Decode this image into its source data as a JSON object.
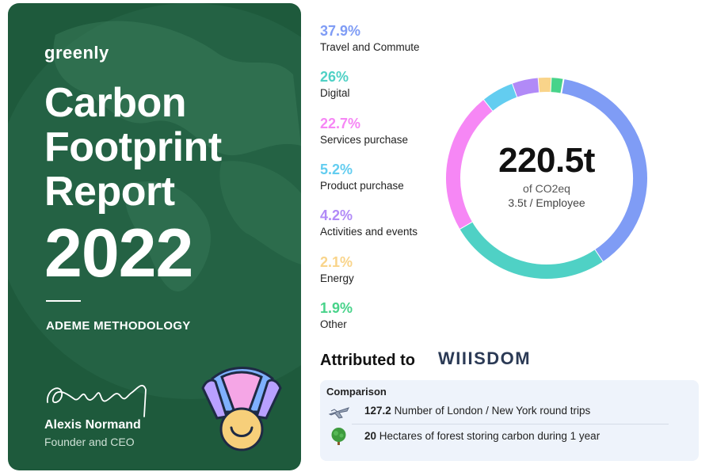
{
  "report": {
    "brand": "greenly",
    "title_lines": [
      "Carbon",
      "Footprint",
      "Report"
    ],
    "year": "2022",
    "methodology": "ADEME METHODOLOGY",
    "author_name": "Alexis Normand",
    "author_role": "Founder and CEO"
  },
  "chart_data": {
    "type": "pie",
    "variant": "donut",
    "total": "220.5t",
    "total_unit": "of CO2eq",
    "per_employee": "3.5t / Employee",
    "slices": [
      {
        "label": "Travel and Commute",
        "percent": 37.9,
        "display": "37.9%",
        "color": "#7f9cf5"
      },
      {
        "label": "Digital",
        "percent": 26,
        "display": "26%",
        "color": "#4fd1c5"
      },
      {
        "label": "Services purchase",
        "percent": 22.7,
        "display": "22.7%",
        "color": "#f687f5"
      },
      {
        "label": "Product purchase",
        "percent": 5.2,
        "display": "5.2%",
        "color": "#63cdf0"
      },
      {
        "label": "Activities and events",
        "percent": 4.2,
        "display": "4.2%",
        "color": "#b18af7"
      },
      {
        "label": "Energy",
        "percent": 2.1,
        "display": "2.1%",
        "color": "#f9d48a"
      },
      {
        "label": "Other",
        "percent": 1.9,
        "display": "1.9%",
        "color": "#48d38a"
      }
    ],
    "legend_position": "left"
  },
  "attribution": {
    "label": "Attributed to",
    "company": "WIIISDOM"
  },
  "comparison": {
    "title": "Comparison",
    "rows": [
      {
        "icon": "airplane-icon",
        "value": "127.2",
        "text": "Number of London / New York round trips"
      },
      {
        "icon": "tree-icon",
        "value": "20",
        "text": "Hectares of forest storing carbon during 1 year"
      }
    ]
  }
}
